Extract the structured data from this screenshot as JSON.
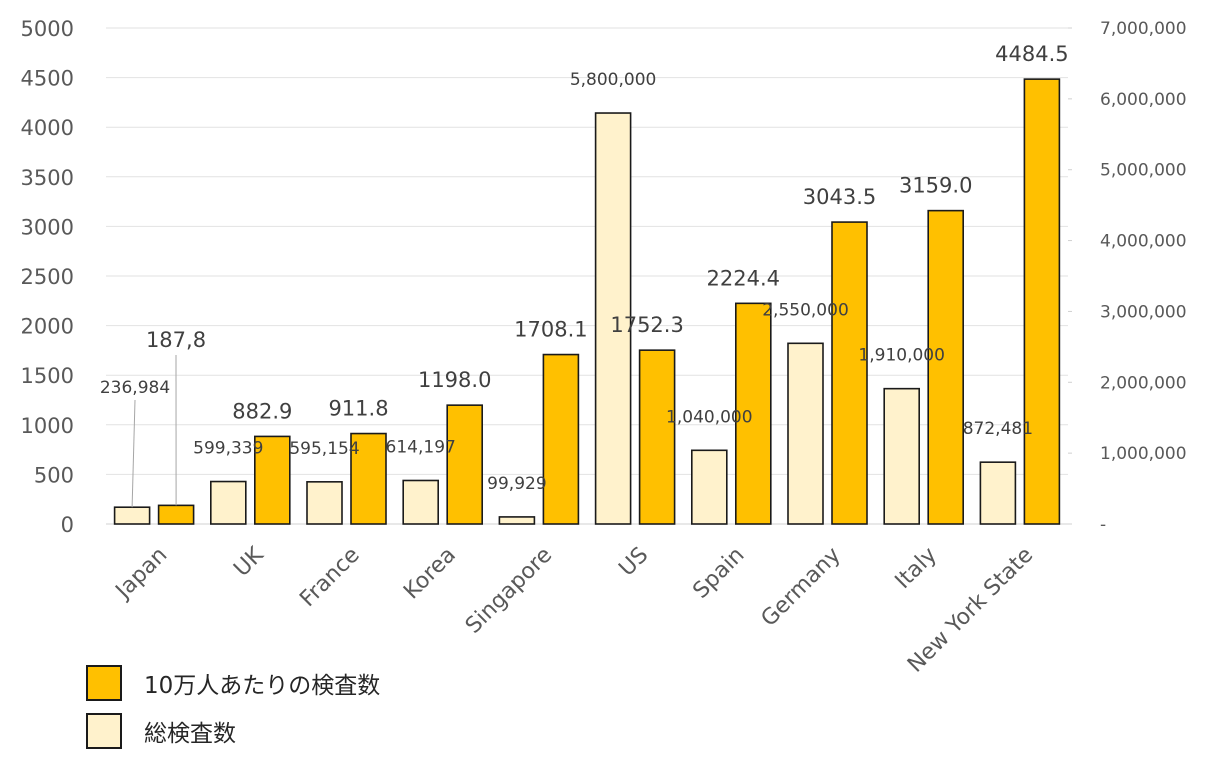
{
  "chart_data": {
    "type": "bar",
    "categories": [
      "Japan",
      "UK",
      "France",
      "Korea",
      "Singapore",
      "US",
      "Spain",
      "Germany",
      "Italy",
      "New York State"
    ],
    "series": [
      {
        "name": "総検査数",
        "axis": "right",
        "color": "#FFF2CC",
        "values": [
          236984,
          599339,
          595154,
          614197,
          99929,
          5800000,
          1040000,
          2550000,
          1910000,
          872481
        ],
        "labels": [
          "236,984",
          "599,339",
          "595,154",
          "614,197",
          "99,929",
          "5,800,000",
          "1,040,000",
          "2,550,000",
          "1,910,000",
          "872,481"
        ]
      },
      {
        "name": "10万人あたりの検査数",
        "axis": "left",
        "color": "#FFC000",
        "values": [
          187.8,
          882.9,
          911.8,
          1198.0,
          1708.1,
          1752.3,
          2224.4,
          3043.5,
          3159.0,
          4484.5
        ],
        "labels": [
          "187,8",
          "882.9",
          "911.8",
          "1198.0",
          "1708.1",
          "1752.3",
          "2224.4",
          "3043.5",
          "3159.0",
          "4484.5"
        ]
      }
    ],
    "y_left": {
      "ylim": [
        0,
        5000
      ],
      "ticks": [
        "0",
        "500",
        "1000",
        "1500",
        "2000",
        "2500",
        "3000",
        "3500",
        "4000",
        "4500",
        "5000"
      ]
    },
    "y_right": {
      "ylim": [
        0,
        7000000
      ],
      "ticks": [
        "-",
        "1,000,000",
        "2,000,000",
        "3,000,000",
        "4,000,000",
        "5,000,000",
        "6,000,000",
        "7,000,000"
      ]
    },
    "grid": true,
    "legend_position": "bottom-left"
  },
  "legend": {
    "items": [
      {
        "label": "10万人あたりの検査数",
        "color": "#FFC000"
      },
      {
        "label": "総検査数",
        "color": "#FFF2CC"
      }
    ]
  }
}
